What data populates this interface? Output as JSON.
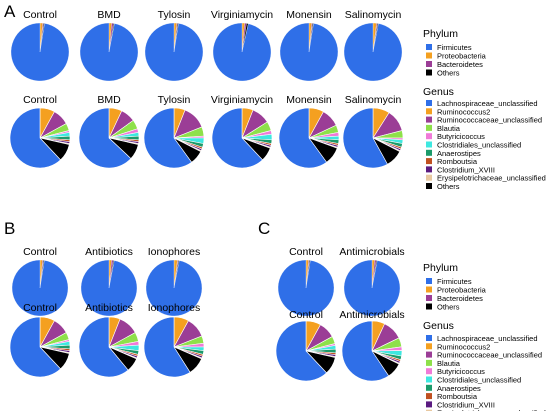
{
  "panels": {
    "A": "A",
    "B": "B",
    "C": "C"
  },
  "legends": {
    "phylum": {
      "title": "Phylum",
      "items": [
        {
          "label": "Firmicutes",
          "color": "#2f6fe8"
        },
        {
          "label": "Proteobacteria",
          "color": "#f4a020"
        },
        {
          "label": "Bacteroidetes",
          "color": "#9b3d96"
        },
        {
          "label": "Others",
          "color": "#000000"
        }
      ]
    },
    "genus": {
      "title": "Genus",
      "items": [
        {
          "label": "Lachnospiraceae_unclassified",
          "color": "#2f6fe8"
        },
        {
          "label": "Ruminococcus2",
          "color": "#f4a020"
        },
        {
          "label": "Ruminococcaceae_unclassified",
          "color": "#9b3d96"
        },
        {
          "label": "Blautia",
          "color": "#8ee04a"
        },
        {
          "label": "Butyricicoccus",
          "color": "#f07ad8"
        },
        {
          "label": "Clostridiales_unclassified",
          "color": "#3ee8e0"
        },
        {
          "label": "Anaerostipes",
          "color": "#1b9a6a"
        },
        {
          "label": "Romboutsia",
          "color": "#c05020"
        },
        {
          "label": "Clostridium_XVIII",
          "color": "#5a1a80"
        },
        {
          "label": "Erysipelotrichaceae_unclassified",
          "color": "#e8c8a0"
        },
        {
          "label": "Others",
          "color": "#000000"
        }
      ]
    }
  },
  "chart_data": [
    {
      "type": "pie",
      "panel": "A",
      "level": "Phylum",
      "categories": [
        "Firmicutes",
        "Proteobacteria",
        "Bacteroidetes",
        "Others"
      ],
      "groups": [
        {
          "name": "Control",
          "values": [
            97.5,
            1.5,
            0.5,
            0.5
          ]
        },
        {
          "name": "BMD",
          "values": [
            97.0,
            1.5,
            1.0,
            0.5
          ]
        },
        {
          "name": "Tylosin",
          "values": [
            97.5,
            1.5,
            0.5,
            0.5
          ]
        },
        {
          "name": "Virginiamycin",
          "values": [
            96.5,
            1.5,
            1.0,
            1.0
          ]
        },
        {
          "name": "Monensin",
          "values": [
            97.5,
            1.5,
            0.5,
            0.5
          ]
        },
        {
          "name": "Salinomycin",
          "values": [
            97.0,
            2.0,
            0.5,
            0.5
          ]
        }
      ]
    },
    {
      "type": "pie",
      "panel": "A",
      "level": "Genus",
      "categories": [
        "Lachnospiraceae_unclassified",
        "Ruminococcus2",
        "Ruminococcaceae_unclassified",
        "Blautia",
        "Butyricicoccus",
        "Clostridiales_unclassified",
        "Anaerostipes",
        "Romboutsia",
        "Clostridium_XVIII",
        "Erysipelotrichaceae_unclassified",
        "Others"
      ],
      "groups": [
        {
          "name": "Control",
          "values": [
            62,
            8,
            9,
            4,
            1,
            2,
            2,
            1,
            1,
            0.5,
            9.5
          ]
        },
        {
          "name": "BMD",
          "values": [
            63,
            7,
            8,
            5,
            2,
            2,
            2,
            1,
            1,
            0.5,
            8.5
          ]
        },
        {
          "name": "Tylosin",
          "values": [
            60,
            6,
            13,
            5,
            1,
            3,
            2,
            1,
            1,
            0.5,
            7.5
          ]
        },
        {
          "name": "Virginiamycin",
          "values": [
            62,
            6,
            10,
            5,
            2,
            3,
            2,
            1,
            1,
            0.5,
            7.5
          ]
        },
        {
          "name": "Monensin",
          "values": [
            60,
            8,
            10,
            4,
            2,
            2,
            2,
            1,
            1,
            0.5,
            9.5
          ]
        },
        {
          "name": "Salinomycin",
          "values": [
            58,
            9,
            12,
            4,
            1,
            2,
            2,
            1,
            1,
            0.5,
            9.5
          ]
        }
      ]
    },
    {
      "type": "pie",
      "panel": "B",
      "level": "Phylum",
      "categories": [
        "Firmicutes",
        "Proteobacteria",
        "Bacteroidetes",
        "Others"
      ],
      "groups": [
        {
          "name": "Control",
          "values": [
            97.5,
            1.5,
            0.5,
            0.5
          ]
        },
        {
          "name": "Antibiotics",
          "values": [
            97.0,
            1.5,
            1.0,
            0.5
          ]
        },
        {
          "name": "Ionophores",
          "values": [
            97.0,
            2.0,
            0.5,
            0.5
          ]
        }
      ]
    },
    {
      "type": "pie",
      "panel": "B",
      "level": "Genus",
      "categories": [
        "Lachnospiraceae_unclassified",
        "Ruminococcus2",
        "Ruminococcaceae_unclassified",
        "Blautia",
        "Butyricicoccus",
        "Clostridiales_unclassified",
        "Anaerostipes",
        "Romboutsia",
        "Clostridium_XVIII",
        "Erysipelotrichaceae_unclassified",
        "Others"
      ],
      "groups": [
        {
          "name": "Control",
          "values": [
            62,
            8,
            9,
            4,
            1,
            2,
            2,
            1,
            1,
            0.5,
            9.5
          ]
        },
        {
          "name": "Antibiotics",
          "values": [
            61,
            6,
            11,
            5,
            2,
            3,
            2,
            1,
            1,
            0.5,
            7.5
          ]
        },
        {
          "name": "Ionophores",
          "values": [
            59,
            8,
            11,
            4,
            2,
            2,
            2,
            1,
            1,
            0.5,
            9.5
          ]
        }
      ]
    },
    {
      "type": "pie",
      "panel": "C",
      "level": "Phylum",
      "categories": [
        "Firmicutes",
        "Proteobacteria",
        "Bacteroidetes",
        "Others"
      ],
      "groups": [
        {
          "name": "Control",
          "values": [
            97.5,
            1.5,
            0.5,
            0.5
          ]
        },
        {
          "name": "Antimicrobials",
          "values": [
            97.0,
            1.5,
            1.0,
            0.5
          ]
        }
      ]
    },
    {
      "type": "pie",
      "panel": "C",
      "level": "Genus",
      "categories": [
        "Lachnospiraceae_unclassified",
        "Ruminococcus2",
        "Ruminococcaceae_unclassified",
        "Blautia",
        "Butyricicoccus",
        "Clostridiales_unclassified",
        "Anaerostipes",
        "Romboutsia",
        "Clostridium_XVIII",
        "Erysipelotrichaceae_unclassified",
        "Others"
      ],
      "groups": [
        {
          "name": "Control",
          "values": [
            62,
            8,
            9,
            4,
            1,
            2,
            2,
            1,
            1,
            0.5,
            9.5
          ]
        },
        {
          "name": "Antimicrobials",
          "values": [
            60,
            7,
            11,
            5,
            2,
            3,
            2,
            1,
            1,
            0.5,
            8.5
          ]
        }
      ]
    }
  ]
}
